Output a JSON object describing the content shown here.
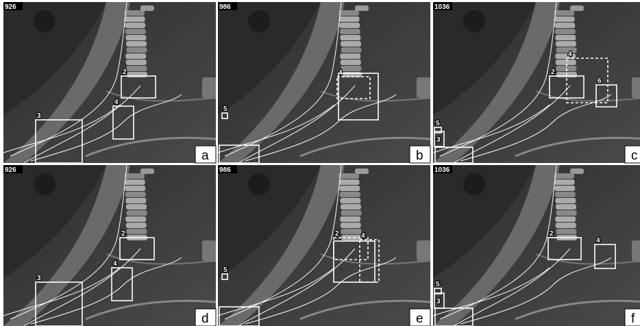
{
  "panels": [
    {
      "frame": "926",
      "letter": "a",
      "labels": [
        "2",
        "3",
        "4"
      ]
    },
    {
      "frame": "986",
      "letter": "b",
      "labels": [
        "4",
        "5"
      ]
    },
    {
      "frame": "1036",
      "letter": "c",
      "labels": [
        "2",
        "4",
        "6",
        "5",
        "3"
      ]
    },
    {
      "frame": "926",
      "letter": "d",
      "labels": [
        "2",
        "3",
        "4"
      ]
    },
    {
      "frame": "986",
      "letter": "e",
      "labels": [
        "2",
        "4",
        "5"
      ]
    },
    {
      "frame": "1036",
      "letter": "f",
      "labels": [
        "2",
        "4",
        "5",
        "3"
      ]
    }
  ]
}
